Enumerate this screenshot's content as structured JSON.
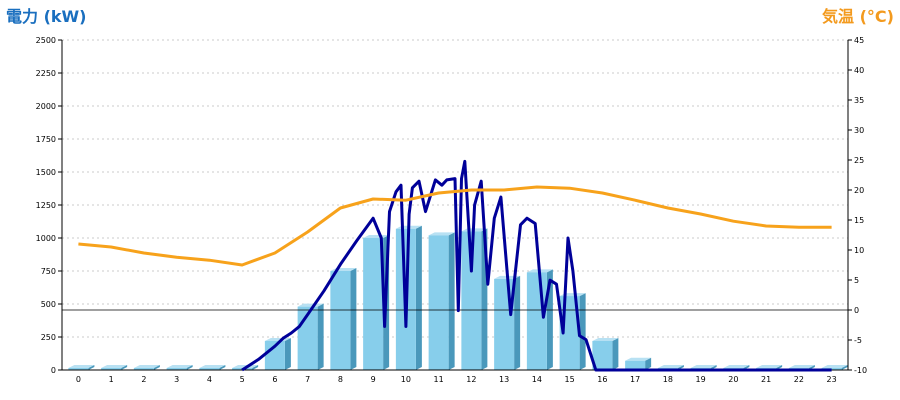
{
  "chart_data": {
    "type": "bar+line",
    "y_left_title": "電力 (kW)",
    "y_right_title": "気温 (°C)",
    "colors": {
      "left_title": "#1a6fbf",
      "right_title": "#f39a1e",
      "bar": "#87ceeb",
      "power_line": "#000099",
      "temp_line": "#f7a21b",
      "grid": "#bbbbbb"
    },
    "y_left": {
      "min": 0,
      "max": 2500,
      "ticks": [
        0,
        250,
        500,
        750,
        1000,
        1250,
        1500,
        1750,
        2000,
        2250,
        2500
      ]
    },
    "y_right": {
      "min": -10,
      "max": 45,
      "ticks": [
        -10,
        -5,
        0,
        5,
        10,
        15,
        20,
        25,
        30,
        35,
        40,
        45
      ]
    },
    "x_labels": [
      "0",
      "1",
      "2",
      "3",
      "4",
      "5",
      "6",
      "7",
      "8",
      "9",
      "10",
      "11",
      "12",
      "13",
      "14",
      "15",
      "16",
      "17",
      "18",
      "19",
      "20",
      "21",
      "22",
      "23"
    ],
    "hourly_power_kw": [
      0,
      0,
      0,
      0,
      0,
      0,
      220,
      480,
      750,
      1000,
      1070,
      1020,
      1050,
      690,
      740,
      560,
      220,
      70,
      0,
      0,
      0,
      0,
      0,
      0
    ],
    "power_series": {
      "x": [
        5,
        5.5,
        6,
        6.25,
        6.5,
        6.75,
        7,
        7.5,
        8,
        8.5,
        9,
        9.25,
        9.35,
        9.5,
        9.7,
        9.85,
        10,
        10.1,
        10.2,
        10.4,
        10.6,
        10.9,
        11.1,
        11.25,
        11.5,
        11.6,
        11.7,
        11.8,
        12,
        12.1,
        12.3,
        12.5,
        12.7,
        12.9,
        13.2,
        13.5,
        13.7,
        13.95,
        14.2,
        14.4,
        14.6,
        14.8,
        14.95,
        15.1,
        15.3,
        15.5,
        15.8,
        16,
        16.2,
        16.4,
        16.6,
        17,
        18,
        23
      ],
      "y": [
        0,
        80,
        180,
        240,
        280,
        330,
        420,
        600,
        800,
        980,
        1150,
        1000,
        330,
        1200,
        1350,
        1400,
        330,
        1180,
        1380,
        1430,
        1200,
        1440,
        1400,
        1440,
        1450,
        450,
        1450,
        1580,
        750,
        1250,
        1430,
        650,
        1150,
        1310,
        420,
        1100,
        1150,
        1110,
        400,
        680,
        650,
        280,
        1000,
        750,
        260,
        230,
        0,
        0,
        0,
        0,
        0,
        0,
        0,
        0
      ]
    },
    "temperature_series": {
      "x": [
        0,
        1,
        2,
        3,
        4,
        5,
        6,
        7,
        8,
        9,
        10,
        11,
        12,
        13,
        14,
        15,
        16,
        17,
        18,
        19,
        20,
        21,
        22,
        23
      ],
      "y": [
        11,
        10.5,
        9.5,
        8.8,
        8.3,
        7.5,
        9.5,
        13,
        17,
        18.5,
        18.3,
        19.5,
        20,
        20,
        20.5,
        20.3,
        19.5,
        18.3,
        17,
        16,
        14.8,
        14,
        13.8,
        13.8
      ]
    },
    "grid": true
  }
}
